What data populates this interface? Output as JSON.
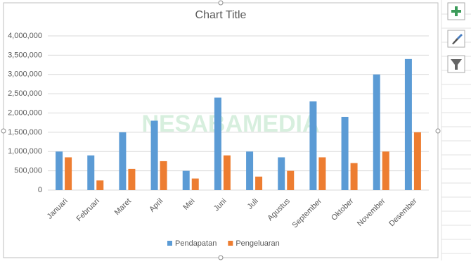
{
  "chart_data": {
    "type": "bar",
    "title": "Chart Title",
    "categories": [
      "Januari",
      "Februari",
      "Maret",
      "April",
      "Mei",
      "Juni",
      "Juli",
      "Agustus",
      "September",
      "Oktober",
      "November",
      "Desember"
    ],
    "series": [
      {
        "name": "Pendapatan",
        "color": "#5b9bd5",
        "values": [
          1000000,
          900000,
          1500000,
          1800000,
          500000,
          2400000,
          1000000,
          850000,
          2300000,
          1900000,
          3000000,
          3400000
        ]
      },
      {
        "name": "Pengeluaran",
        "color": "#ed7d31",
        "values": [
          850000,
          250000,
          550000,
          750000,
          300000,
          900000,
          350000,
          500000,
          850000,
          700000,
          1000000,
          1500000
        ]
      }
    ],
    "ylim": [
      0,
      4000000
    ],
    "yticks": [
      {
        "value": 0,
        "label": "0"
      },
      {
        "value": 500000,
        "label": "500,000"
      },
      {
        "value": 1000000,
        "label": "1,000,000"
      },
      {
        "value": 1500000,
        "label": "1,500,000"
      },
      {
        "value": 2000000,
        "label": "2,000,000"
      },
      {
        "value": 2500000,
        "label": "2,500,000"
      },
      {
        "value": 3000000,
        "label": "3,000,000"
      },
      {
        "value": 3500000,
        "label": "3,500,000"
      },
      {
        "value": 4000000,
        "label": "4,000,000"
      }
    ],
    "grid": true,
    "legend": "bottom"
  },
  "watermark": "NESABAMEDIA"
}
